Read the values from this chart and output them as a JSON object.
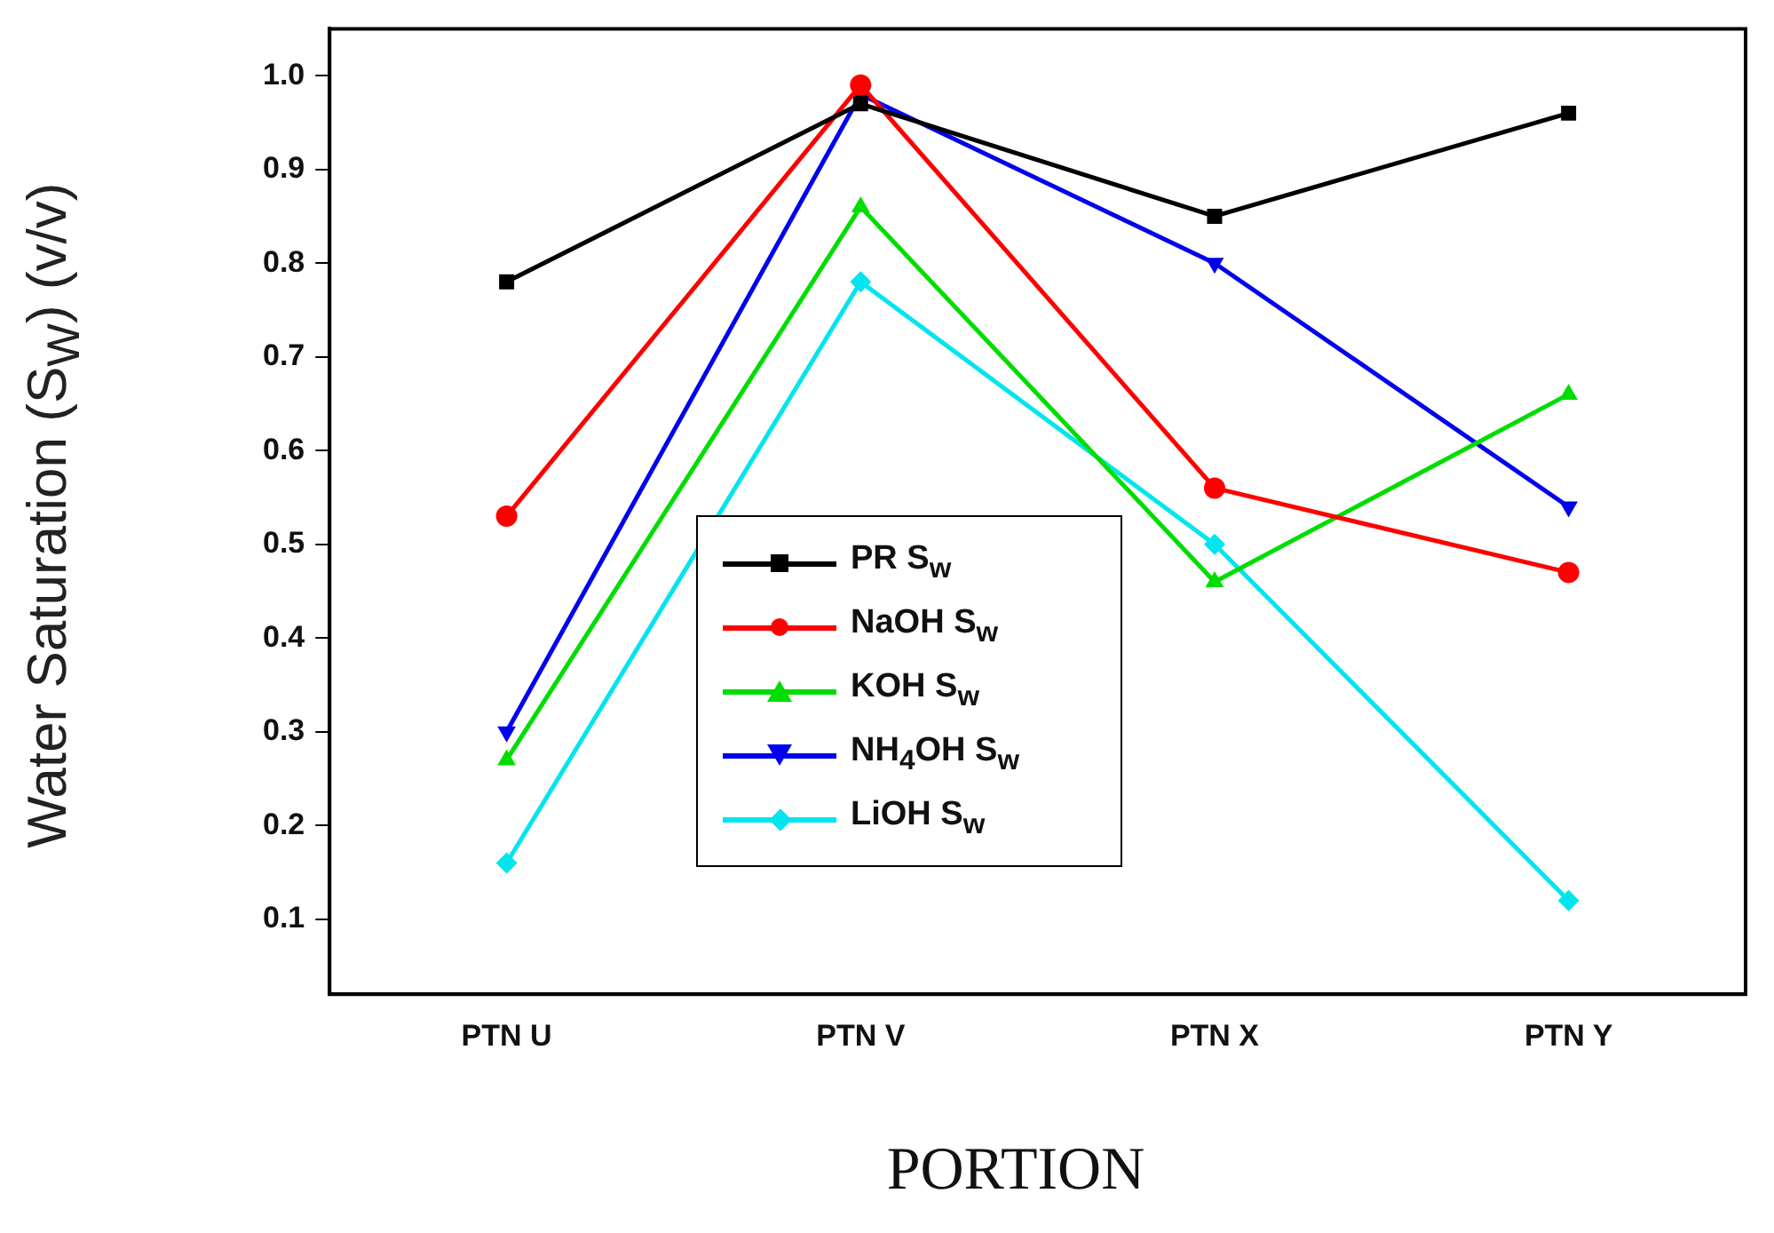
{
  "chart_data": {
    "type": "line",
    "xlabel": "PORTION",
    "ylabel": "Water Saturation (S$_{W}$) (v/v)",
    "categories": [
      "PTN U",
      "PTN V",
      "PTN X",
      "PTN Y"
    ],
    "series": [
      {
        "name": "PR S$_{w}$",
        "color": "#000000",
        "marker": "square",
        "values": [
          0.78,
          0.97,
          0.85,
          0.96
        ]
      },
      {
        "name": "NaOH S$_{w}$",
        "color": "#ff0000",
        "marker": "circle",
        "values": [
          0.53,
          0.99,
          0.56,
          0.47
        ]
      },
      {
        "name": "KOH S$_{w}$",
        "color": "#00dd00",
        "marker": "triangle",
        "values": [
          0.27,
          0.86,
          0.46,
          0.66
        ]
      },
      {
        "name": "NH$_{4}$OH S$_{w}$",
        "color": "#0000ee",
        "marker": "triangle-down",
        "values": [
          0.3,
          0.98,
          0.8,
          0.54
        ]
      },
      {
        "name": "LiOH S$_{w}$",
        "color": "#00e5ee",
        "marker": "diamond",
        "values": [
          0.16,
          0.78,
          0.5,
          0.12
        ]
      }
    ],
    "ylim": [
      0.02,
      1.05
    ],
    "yticks": [
      0.1,
      0.2,
      0.3,
      0.4,
      0.5,
      0.6,
      0.7,
      0.8,
      0.9,
      {
        "value": 1,
        "label": "1.0"
      }
    ],
    "grid": false,
    "legend": "bottom",
    "line_style": "solid"
  }
}
